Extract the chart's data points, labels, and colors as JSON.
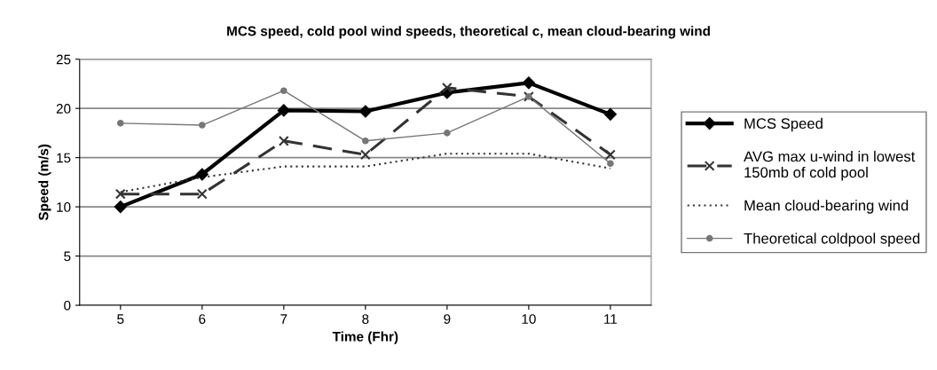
{
  "chart_data": {
    "type": "line",
    "title": "MCS speed, cold pool wind speeds, theoretical c, mean cloud-bearing wind",
    "xlabel": "Time (Fhr)",
    "ylabel": "Speed (m/s)",
    "categories": [
      "5",
      "6",
      "7",
      "8",
      "9",
      "10",
      "11"
    ],
    "ylim": [
      0,
      25
    ],
    "yticks": [
      0,
      5,
      10,
      15,
      20,
      25
    ],
    "grid": "y",
    "legend": "right",
    "series": [
      {
        "name": "MCS Speed",
        "color": "#000000",
        "marker": "diamond",
        "line_style": "solid",
        "values": [
          10,
          13.3,
          19.8,
          19.7,
          21.6,
          22.6,
          19.4
        ]
      },
      {
        "name": "AVG max u-wind in lowest\n150mb of cold pool",
        "color": "#333333",
        "marker": "cross",
        "line_style": "dashed",
        "values": [
          11.3,
          11.3,
          16.7,
          15.3,
          22.1,
          21.2,
          15.3
        ]
      },
      {
        "name": "Mean cloud-bearing wind",
        "color": "#333333",
        "marker": "none",
        "line_style": "dotted",
        "values": [
          11.5,
          13,
          14.1,
          14.1,
          15.4,
          15.4,
          13.9
        ]
      },
      {
        "name": "Theoretical coldpool speed",
        "color": "#777777",
        "marker": "circle",
        "line_style": "solid",
        "values": [
          18.5,
          18.3,
          21.8,
          16.7,
          17.5,
          21.2,
          14.4
        ]
      }
    ]
  }
}
